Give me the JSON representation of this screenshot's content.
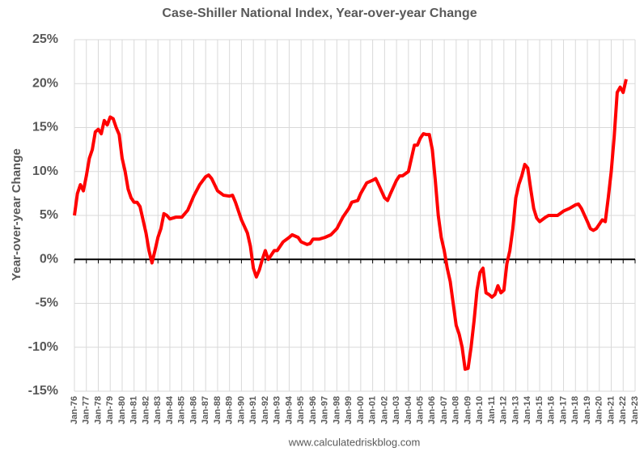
{
  "chart_data": {
    "type": "line",
    "title": "Case-Shiller National Index, Year-over-year Change",
    "y_label": "Year-over-year Change",
    "source": "www.calculatedriskblog.com",
    "grid": true,
    "series": [
      {
        "name": "Case-Shiller National Index YoY",
        "color": "#ff0000",
        "x": [
          1976.0,
          1976.25,
          1976.5,
          1976.75,
          1977.0,
          1977.25,
          1977.5,
          1977.75,
          1978.0,
          1978.25,
          1978.5,
          1978.75,
          1979.0,
          1979.25,
          1979.5,
          1979.75,
          1980.0,
          1980.25,
          1980.5,
          1980.75,
          1981.0,
          1981.25,
          1981.5,
          1981.75,
          1982.0,
          1982.25,
          1982.5,
          1982.75,
          1983.0,
          1983.25,
          1983.5,
          1983.75,
          1984.0,
          1984.5,
          1985.0,
          1985.5,
          1986.0,
          1986.5,
          1987.0,
          1987.25,
          1987.5,
          1988.0,
          1988.5,
          1989.0,
          1989.25,
          1989.5,
          1990.0,
          1990.5,
          1990.75,
          1991.0,
          1991.25,
          1991.5,
          1991.75,
          1992.0,
          1992.25,
          1992.5,
          1992.75,
          1993.0,
          1993.5,
          1994.0,
          1994.25,
          1994.75,
          1995.0,
          1995.5,
          1995.75,
          1996.0,
          1996.5,
          1997.0,
          1997.5,
          1998.0,
          1998.5,
          1999.0,
          1999.25,
          1999.75,
          2000.0,
          2000.5,
          2001.0,
          2001.25,
          2001.5,
          2002.0,
          2002.25,
          2002.5,
          2003.0,
          2003.25,
          2003.5,
          2004.0,
          2004.25,
          2004.5,
          2004.75,
          2005.0,
          2005.25,
          2005.5,
          2005.75,
          2006.0,
          2006.25,
          2006.5,
          2006.75,
          2007.0,
          2007.25,
          2007.5,
          2007.75,
          2008.0,
          2008.25,
          2008.5,
          2008.75,
          2009.0,
          2009.25,
          2009.5,
          2009.75,
          2010.0,
          2010.25,
          2010.5,
          2010.75,
          2011.0,
          2011.25,
          2011.5,
          2011.75,
          2012.0,
          2012.25,
          2012.5,
          2012.75,
          2013.0,
          2013.25,
          2013.5,
          2013.75,
          2014.0,
          2014.25,
          2014.5,
          2014.75,
          2015.0,
          2015.5,
          2015.75,
          2016.0,
          2016.5,
          2017.0,
          2017.5,
          2018.0,
          2018.25,
          2018.5,
          2019.0,
          2019.25,
          2019.5,
          2019.75,
          2020.0,
          2020.25,
          2020.5,
          2020.75,
          2021.0,
          2021.25,
          2021.5,
          2021.75,
          2022.0,
          2022.25
        ],
        "values": [
          5,
          7.5,
          8.5,
          7.8,
          9.5,
          11.5,
          12.5,
          14.5,
          14.8,
          14.3,
          15.8,
          15.3,
          16.2,
          16,
          15,
          14.2,
          11.5,
          10,
          8,
          7,
          6.5,
          6.5,
          6,
          4.5,
          3,
          1,
          -0.4,
          1,
          2.5,
          3.5,
          5.2,
          5,
          4.6,
          4.8,
          4.8,
          5.6,
          7.2,
          8.5,
          9.4,
          9.6,
          9.2,
          7.8,
          7.3,
          7.2,
          7.3,
          6.5,
          4.5,
          3,
          1.5,
          -1,
          -2,
          -1.2,
          0,
          1,
          0,
          0.5,
          1,
          1,
          2,
          2.5,
          2.8,
          2.5,
          2,
          1.7,
          1.8,
          2.3,
          2.3,
          2.5,
          2.8,
          3.5,
          4.8,
          5.8,
          6.5,
          6.7,
          7.5,
          8.7,
          9,
          9.2,
          8.5,
          7,
          6.7,
          7.5,
          9,
          9.5,
          9.5,
          10,
          11.5,
          13,
          13,
          13.8,
          14.3,
          14.2,
          14.2,
          12.5,
          9,
          5,
          2.5,
          1,
          -1,
          -2.5,
          -5,
          -7.5,
          -8.5,
          -10,
          -12.5,
          -12.4,
          -10,
          -7,
          -3.5,
          -1.5,
          -1,
          -3.8,
          -4,
          -4.3,
          -4,
          -3,
          -3.8,
          -3.5,
          -0.5,
          1,
          3.5,
          7,
          8.5,
          9.5,
          10.8,
          10.4,
          8,
          5.8,
          4.7,
          4.3,
          4.8,
          5,
          5,
          5,
          5.5,
          5.8,
          6.2,
          6.3,
          5.8,
          4.3,
          3.5,
          3.3,
          3.5,
          4,
          4.5,
          4.3,
          7,
          10,
          14,
          19,
          19.6,
          19,
          20.5
        ]
      }
    ],
    "xlim": [
      1976,
      2023
    ],
    "xticks": [
      {
        "value": 1976,
        "label": "Jan-76"
      },
      {
        "value": 1977,
        "label": "Jan-77"
      },
      {
        "value": 1978,
        "label": "Jan-78"
      },
      {
        "value": 1979,
        "label": "Jan-79"
      },
      {
        "value": 1980,
        "label": "Jan-80"
      },
      {
        "value": 1981,
        "label": "Jan-81"
      },
      {
        "value": 1982,
        "label": "Jan-82"
      },
      {
        "value": 1983,
        "label": "Jan-83"
      },
      {
        "value": 1984,
        "label": "Jan-84"
      },
      {
        "value": 1985,
        "label": "Jan-85"
      },
      {
        "value": 1986,
        "label": "Jan-86"
      },
      {
        "value": 1987,
        "label": "Jan-87"
      },
      {
        "value": 1988,
        "label": "Jan-88"
      },
      {
        "value": 1989,
        "label": "Jan-89"
      },
      {
        "value": 1990,
        "label": "Jan-90"
      },
      {
        "value": 1991,
        "label": "Jan-91"
      },
      {
        "value": 1992,
        "label": "Jan-92"
      },
      {
        "value": 1993,
        "label": "Jan-93"
      },
      {
        "value": 1994,
        "label": "Jan-94"
      },
      {
        "value": 1995,
        "label": "Jan-95"
      },
      {
        "value": 1996,
        "label": "Jan-96"
      },
      {
        "value": 1997,
        "label": "Jan-97"
      },
      {
        "value": 1998,
        "label": "Jan-98"
      },
      {
        "value": 1999,
        "label": "Jan-99"
      },
      {
        "value": 2000,
        "label": "Jan-00"
      },
      {
        "value": 2001,
        "label": "Jan-01"
      },
      {
        "value": 2002,
        "label": "Jan-02"
      },
      {
        "value": 2003,
        "label": "Jan-03"
      },
      {
        "value": 2004,
        "label": "Jan-04"
      },
      {
        "value": 2005,
        "label": "Jan-05"
      },
      {
        "value": 2006,
        "label": "Jan-06"
      },
      {
        "value": 2007,
        "label": "Jan-07"
      },
      {
        "value": 2008,
        "label": "Jan-08"
      },
      {
        "value": 2009,
        "label": "Jan-09"
      },
      {
        "value": 2010,
        "label": "Jan-10"
      },
      {
        "value": 2011,
        "label": "Jan-11"
      },
      {
        "value": 2012,
        "label": "Jan-12"
      },
      {
        "value": 2013,
        "label": "Jan-13"
      },
      {
        "value": 2014,
        "label": "Jan-14"
      },
      {
        "value": 2015,
        "label": "Jan-15"
      },
      {
        "value": 2016,
        "label": "Jan-16"
      },
      {
        "value": 2017,
        "label": "Jan-17"
      },
      {
        "value": 2018,
        "label": "Jan-18"
      },
      {
        "value": 2019,
        "label": "Jan-19"
      },
      {
        "value": 2020,
        "label": "Jan-20"
      },
      {
        "value": 2021,
        "label": "Jan-21"
      },
      {
        "value": 2022,
        "label": "Jan-22"
      },
      {
        "value": 2023,
        "label": "Jan-23"
      }
    ],
    "ylim": [
      -15,
      25
    ],
    "yticks": [
      {
        "value": -15,
        "label": "-15%"
      },
      {
        "value": -10,
        "label": "-10%"
      },
      {
        "value": -5,
        "label": "-5%"
      },
      {
        "value": 0,
        "label": "0%"
      },
      {
        "value": 5,
        "label": "5%"
      },
      {
        "value": 10,
        "label": "10%"
      },
      {
        "value": 15,
        "label": "15%"
      },
      {
        "value": 20,
        "label": "20%"
      },
      {
        "value": 25,
        "label": "25%"
      }
    ]
  }
}
